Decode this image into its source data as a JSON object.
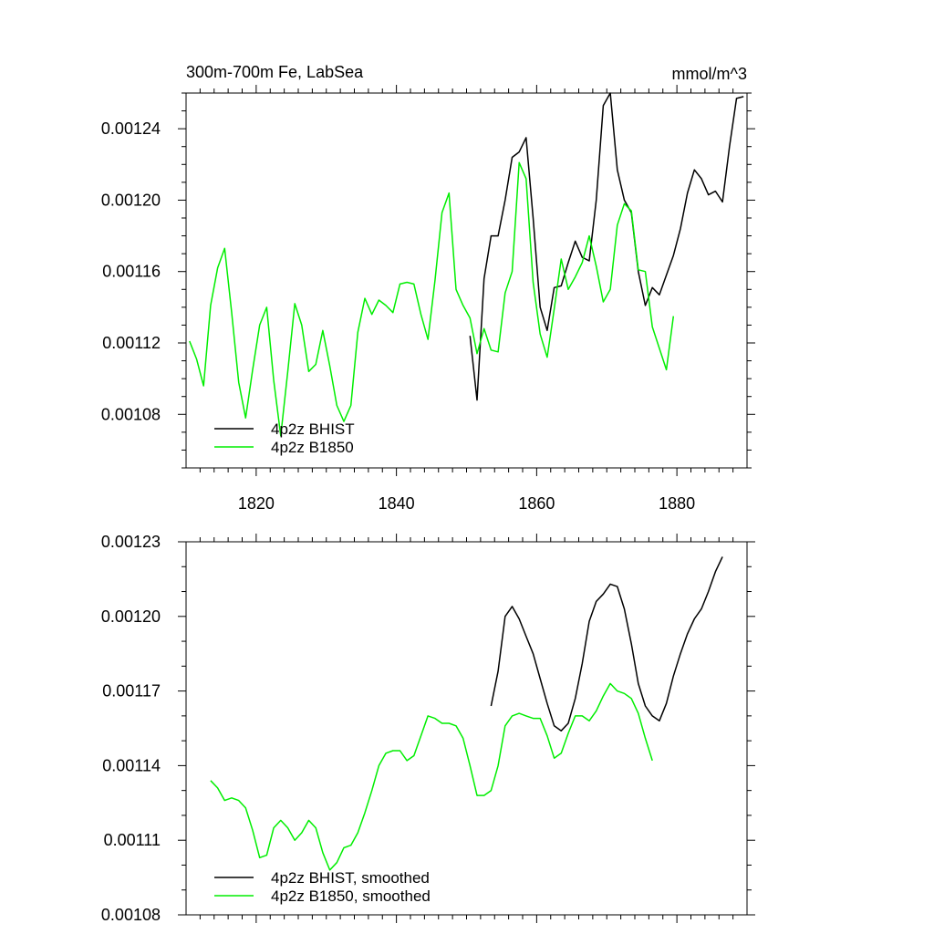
{
  "header": {
    "title": "300m-700m Fe, LabSea",
    "units": "mmol/m^3"
  },
  "colors": {
    "bhist": "#000000",
    "b1850": "#00ee00",
    "axis": "#000000"
  },
  "chart_data": [
    {
      "type": "line",
      "title": "300m-700m Fe, LabSea",
      "units": "mmol/m^3",
      "xlim": [
        1810,
        1890
      ],
      "ylim": [
        0.00105,
        0.00126
      ],
      "xticks": [
        1820,
        1840,
        1860,
        1880
      ],
      "yticks": [
        0.00108,
        0.00112,
        0.00116,
        0.0012,
        0.00124
      ],
      "ytick_labels": [
        "0.00108",
        "0.00112",
        "0.00116",
        "0.00120",
        "0.00124"
      ],
      "xtick_labels": [
        "1820",
        "1840",
        "1860",
        "1880"
      ],
      "legend_position": "bottom-left",
      "series": [
        {
          "name": "4p2z BHIST",
          "color": "#000000",
          "x": [
            1850.5,
            1851.5,
            1852.5,
            1853.5,
            1854.5,
            1855.5,
            1856.5,
            1857.5,
            1858.5,
            1859.5,
            1860.5,
            1861.5,
            1862.5,
            1863.5,
            1864.5,
            1865.5,
            1866.5,
            1867.5,
            1868.5,
            1869.5,
            1870.5,
            1871.5,
            1872.5,
            1873.5,
            1874.5,
            1875.5,
            1876.5,
            1877.5,
            1878.5,
            1879.5,
            1880.5,
            1881.5,
            1882.5,
            1883.5,
            1884.5,
            1885.5,
            1886.5,
            1887.5,
            1888.5,
            1889.5
          ],
          "y": [
            0.001124,
            0.001088,
            0.001156,
            0.00118,
            0.00118,
            0.0012,
            0.001224,
            0.001227,
            0.001235,
            0.00119,
            0.00114,
            0.001127,
            0.001151,
            0.001152,
            0.001165,
            0.001177,
            0.001168,
            0.001166,
            0.0012,
            0.001253,
            0.00126,
            0.001217,
            0.0012,
            0.001193,
            0.00116,
            0.001141,
            0.001151,
            0.001147,
            0.001158,
            0.001169,
            0.001184,
            0.001204,
            0.001217,
            0.001212,
            0.001203,
            0.001205,
            0.001199,
            0.00123,
            0.001257,
            0.001258
          ]
        },
        {
          "name": "4p2z B1850",
          "color": "#00ee00",
          "x": [
            1810.5,
            1811.5,
            1812.5,
            1813.5,
            1814.5,
            1815.5,
            1816.5,
            1817.5,
            1818.5,
            1819.5,
            1820.5,
            1821.5,
            1822.5,
            1823.5,
            1824.5,
            1825.5,
            1826.5,
            1827.5,
            1828.5,
            1829.5,
            1830.5,
            1831.5,
            1832.5,
            1833.5,
            1834.5,
            1835.5,
            1836.5,
            1837.5,
            1838.5,
            1839.5,
            1840.5,
            1841.5,
            1842.5,
            1843.5,
            1844.5,
            1845.5,
            1846.5,
            1847.5,
            1848.5,
            1849.5,
            1850.5,
            1851.5,
            1852.5,
            1853.5,
            1854.5,
            1855.5,
            1856.5,
            1857.5,
            1858.5,
            1859.5,
            1860.5,
            1861.5,
            1862.5,
            1863.5,
            1864.5,
            1865.5,
            1866.5,
            1867.5,
            1868.5,
            1869.5,
            1870.5,
            1871.5,
            1872.5,
            1873.5,
            1874.5,
            1875.5,
            1876.5,
            1877.5,
            1878.5,
            1879.5
          ],
          "y": [
            0.001121,
            0.001111,
            0.001096,
            0.001141,
            0.001162,
            0.001173,
            0.001137,
            0.001098,
            0.001078,
            0.001105,
            0.00113,
            0.00114,
            0.001099,
            0.001068,
            0.001104,
            0.001142,
            0.00113,
            0.001104,
            0.001108,
            0.001127,
            0.001107,
            0.001085,
            0.001076,
            0.001085,
            0.001126,
            0.001145,
            0.001136,
            0.001144,
            0.001141,
            0.001137,
            0.001153,
            0.001154,
            0.001153,
            0.001136,
            0.001122,
            0.001155,
            0.001193,
            0.001204,
            0.00115,
            0.001141,
            0.001134,
            0.001114,
            0.001128,
            0.001116,
            0.001115,
            0.001148,
            0.00116,
            0.001221,
            0.001212,
            0.001154,
            0.001125,
            0.001112,
            0.001139,
            0.001167,
            0.00115,
            0.001157,
            0.001165,
            0.00118,
            0.001163,
            0.001143,
            0.00115,
            0.001186,
            0.001198,
            0.001194,
            0.001161,
            0.00116,
            0.001129,
            0.001117,
            0.001105,
            0.001135
          ]
        }
      ]
    },
    {
      "type": "line",
      "xlim": [
        1810,
        1890
      ],
      "ylim": [
        0.00108,
        0.00123
      ],
      "xticks": [
        1820,
        1840,
        1860,
        1880
      ],
      "yticks": [
        0.00108,
        0.00111,
        0.00114,
        0.00117,
        0.0012,
        0.00123
      ],
      "ytick_labels": [
        "0.00108",
        "0.00111",
        "0.00114",
        "0.00117",
        "0.00120",
        "0.00123"
      ],
      "legend_position": "bottom-left",
      "series": [
        {
          "name": "4p2z BHIST, smoothed",
          "color": "#000000",
          "x": [
            1853.5,
            1854.5,
            1855.5,
            1856.5,
            1857.5,
            1858.5,
            1859.5,
            1860.5,
            1861.5,
            1862.5,
            1863.5,
            1864.5,
            1865.5,
            1866.5,
            1867.5,
            1868.5,
            1869.5,
            1870.5,
            1871.5,
            1872.5,
            1873.5,
            1874.5,
            1875.5,
            1876.5,
            1877.5,
            1878.5,
            1879.5,
            1880.5,
            1881.5,
            1882.5,
            1883.5,
            1884.5,
            1885.5,
            1886.5
          ],
          "y": [
            0.001164,
            0.001178,
            0.0012,
            0.001204,
            0.001199,
            0.001192,
            0.001185,
            0.001175,
            0.001165,
            0.001156,
            0.001154,
            0.001157,
            0.001167,
            0.001181,
            0.001198,
            0.001206,
            0.001209,
            0.001213,
            0.001212,
            0.001203,
            0.001189,
            0.001173,
            0.001164,
            0.00116,
            0.001158,
            0.001165,
            0.001176,
            0.001185,
            0.001193,
            0.001199,
            0.001203,
            0.00121,
            0.001218,
            0.001224
          ]
        },
        {
          "name": "4p2z B1850, smoothed",
          "color": "#00ee00",
          "x": [
            1813.5,
            1814.5,
            1815.5,
            1816.5,
            1817.5,
            1818.5,
            1819.5,
            1820.5,
            1821.5,
            1822.5,
            1823.5,
            1824.5,
            1825.5,
            1826.5,
            1827.5,
            1828.5,
            1829.5,
            1830.5,
            1831.5,
            1832.5,
            1833.5,
            1834.5,
            1835.5,
            1836.5,
            1837.5,
            1838.5,
            1839.5,
            1840.5,
            1841.5,
            1842.5,
            1843.5,
            1844.5,
            1845.5,
            1846.5,
            1847.5,
            1848.5,
            1849.5,
            1850.5,
            1851.5,
            1852.5,
            1853.5,
            1854.5,
            1855.5,
            1856.5,
            1857.5,
            1858.5,
            1859.5,
            1860.5,
            1861.5,
            1862.5,
            1863.5,
            1864.5,
            1865.5,
            1866.5,
            1867.5,
            1868.5,
            1869.5,
            1870.5,
            1871.5,
            1872.5,
            1873.5,
            1874.5,
            1875.5,
            1876.5
          ],
          "y": [
            0.001134,
            0.001131,
            0.001126,
            0.001127,
            0.001126,
            0.001123,
            0.001114,
            0.001103,
            0.001104,
            0.001115,
            0.001118,
            0.001115,
            0.00111,
            0.001113,
            0.001118,
            0.001115,
            0.001105,
            0.001098,
            0.001101,
            0.001107,
            0.001108,
            0.001113,
            0.001121,
            0.00113,
            0.00114,
            0.001145,
            0.001146,
            0.001146,
            0.001142,
            0.001144,
            0.001152,
            0.00116,
            0.001159,
            0.001157,
            0.001157,
            0.001156,
            0.001151,
            0.00114,
            0.001128,
            0.001128,
            0.00113,
            0.00114,
            0.001156,
            0.00116,
            0.001161,
            0.00116,
            0.001159,
            0.001159,
            0.001152,
            0.001143,
            0.001145,
            0.001153,
            0.00116,
            0.00116,
            0.001158,
            0.001162,
            0.001168,
            0.001173,
            0.00117,
            0.001169,
            0.001167,
            0.001161,
            0.001151,
            0.001142
          ]
        }
      ]
    }
  ]
}
